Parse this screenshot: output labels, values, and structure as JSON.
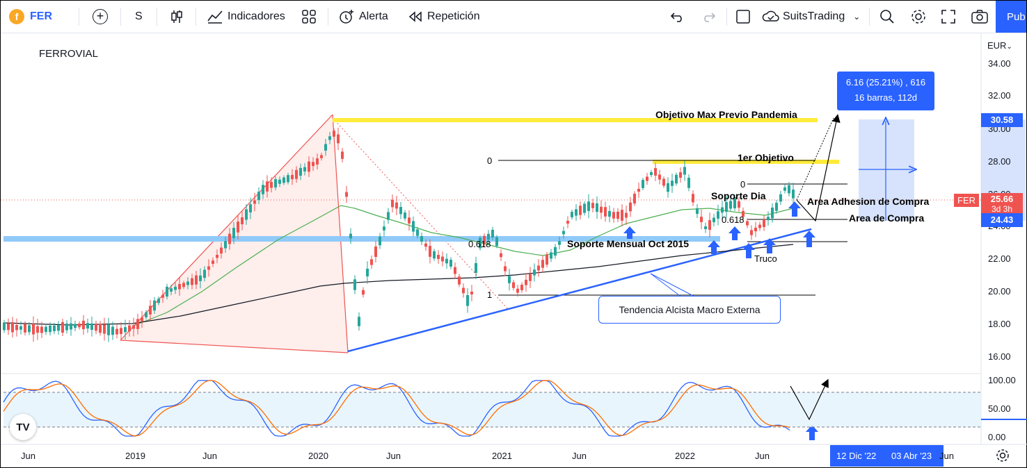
{
  "toolbar": {
    "symbol": "FER",
    "interval": "S",
    "indicators_label": "Indicadores",
    "alert_label": "Alerta",
    "replay_label": "Repetición",
    "layout_name": "SuitsTrading",
    "publish_label": "Pub"
  },
  "chart": {
    "title": "FERROVIAL",
    "currency": "EUR",
    "y_ticks": [
      "34.00",
      "32.00",
      "30.00",
      "28.00",
      "26.00",
      "24.00",
      "22.00",
      "20.00",
      "18.00",
      "16.00"
    ],
    "osc_ticks": [
      "100.00",
      "50.00",
      "0.00"
    ],
    "x_ticks": [
      "Jun",
      "2019",
      "Jun",
      "2020",
      "Jun",
      "2021",
      "Jun",
      "2022",
      "Jun",
      "Jun"
    ],
    "date_range_start": "12 Dic '22",
    "date_range_end": "03 Abr '23",
    "price_badge_symbol": "FER",
    "price_badge_value": "25.66",
    "price_badge_countdown": "3d 3h",
    "target_badge_value": "30.58",
    "entry_badge_value": "24.43",
    "measure_line1": "6.16 (25.21%) , 616",
    "measure_line2": "16 barras, 112d"
  },
  "annotations": {
    "objetivo_max": "Objetivo Max Previo Pandemia",
    "primer_objetivo": "1er Objetivo",
    "soporte_dia": "Soporte Dia",
    "area_adhesion": "Area Adhesion de Compra",
    "area_compra": "Area de Compra",
    "soporte_mensual": "Soporte Mensual Oct 2015",
    "truco": "Truco",
    "tendencia": "Tendencia Alcista Macro Externa",
    "fib_0_a": "0",
    "fib_0618_a": "0.618",
    "fib_1_a": "1",
    "fib_0_b": "0",
    "fib_0618_b": "0.618"
  },
  "colors": {
    "accent": "#2962ff",
    "up": "#26a69a",
    "down": "#ef5350",
    "yellow": "#ffeb3b",
    "support": "#90caf9"
  },
  "icons": [
    "logo-icon",
    "add-icon",
    "candles-icon",
    "indicators-icon",
    "templates-icon",
    "alert-icon",
    "replay-icon",
    "undo-icon",
    "redo-icon",
    "layout-icon",
    "cloud-icon",
    "chevron-down-icon",
    "search-icon",
    "gear-icon",
    "fullscreen-icon",
    "camera-icon",
    "tradingview-icon",
    "settings-icon"
  ]
}
